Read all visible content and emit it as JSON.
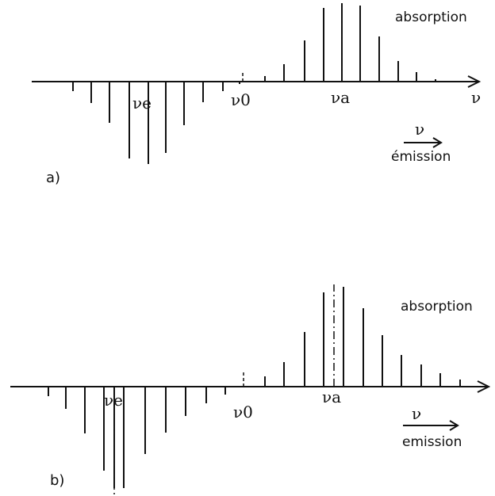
{
  "figure": {
    "panel_a": {
      "panel_label": "a)",
      "absorption_label": "absorption",
      "emission_label": "émission",
      "nu_e_label": "νe",
      "nu_0_label": "ν0",
      "nu_a_label": "νa",
      "axis_end_label": "ν",
      "arrow_label": "ν"
    },
    "panel_b": {
      "panel_label": "b)",
      "absorption_label": "absorption",
      "emission_label": "emission",
      "nu_e_label": "νe",
      "nu_0_label": "ν0",
      "nu_a_label": "νa",
      "arrow_label": "ν"
    }
  }
}
